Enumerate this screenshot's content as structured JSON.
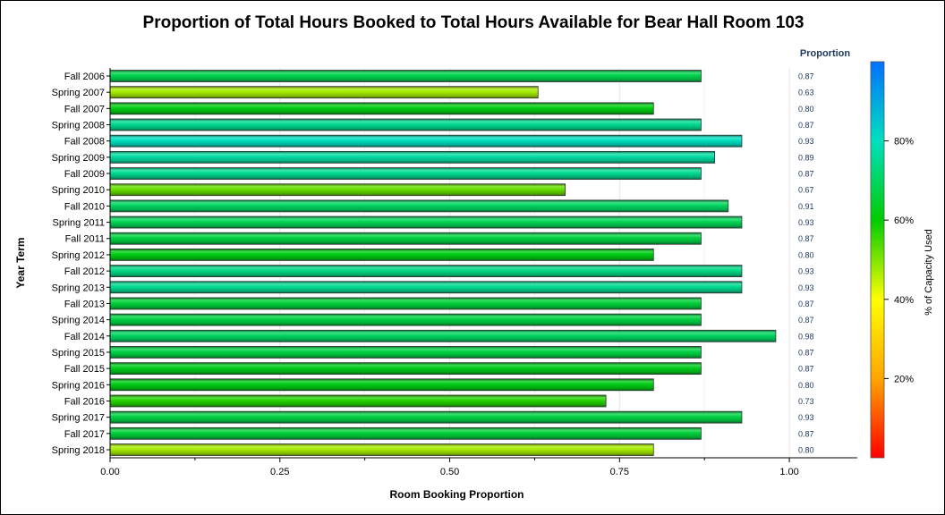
{
  "chart_data": {
    "type": "bar",
    "orientation": "horizontal",
    "title": "Proportion of Total Hours Booked to Total Hours Available for Bear Hall Room 103",
    "xlabel": "Room Booking Proportion",
    "ylabel": "Year Term",
    "xlim": [
      0,
      1.1
    ],
    "x_ticks": [
      "0.00",
      "0.25",
      "0.50",
      "0.75",
      "1.00"
    ],
    "value_column_header": "Proportion",
    "categories": [
      "Fall 2006",
      "Spring 2007",
      "Fall 2007",
      "Spring 2008",
      "Fall 2008",
      "Spring 2009",
      "Fall 2009",
      "Spring 2010",
      "Fall 2010",
      "Spring 2011",
      "Fall 2011",
      "Spring 2012",
      "Fall 2012",
      "Spring 2013",
      "Fall 2013",
      "Spring 2014",
      "Fall 2014",
      "Spring 2015",
      "Fall 2015",
      "Spring 2016",
      "Fall 2016",
      "Spring 2017",
      "Fall 2017",
      "Spring 2018"
    ],
    "values": [
      0.87,
      0.63,
      0.8,
      0.87,
      0.93,
      0.89,
      0.87,
      0.67,
      0.91,
      0.93,
      0.87,
      0.8,
      0.93,
      0.93,
      0.87,
      0.87,
      0.98,
      0.87,
      0.87,
      0.8,
      0.73,
      0.93,
      0.87,
      0.8
    ],
    "value_labels": [
      "0.87",
      "0.63",
      "0.80",
      "0.87",
      "0.93",
      "0.89",
      "0.87",
      "0.67",
      "0.91",
      "0.93",
      "0.87",
      "0.80",
      "0.93",
      "0.93",
      "0.87",
      "0.87",
      "0.98",
      "0.87",
      "0.87",
      "0.80",
      "0.73",
      "0.93",
      "0.87",
      "0.80"
    ],
    "capacity_pct": [
      68,
      47,
      62,
      75,
      80,
      77,
      75,
      52,
      70,
      69,
      67,
      62,
      74,
      75,
      66,
      67,
      70,
      67,
      63,
      62,
      57,
      67,
      66,
      47
    ],
    "colorbar": {
      "title": "% of Capacity Used",
      "ticks": [
        "20%",
        "40%",
        "60%",
        "80%"
      ],
      "tick_values": [
        20,
        40,
        60,
        80
      ],
      "range": [
        0,
        100
      ],
      "colors": [
        "#ff0000",
        "#ffa500",
        "#ffff00",
        "#00cc00",
        "#00e0c0",
        "#0070ff"
      ]
    },
    "grid": true,
    "legend": "right"
  }
}
